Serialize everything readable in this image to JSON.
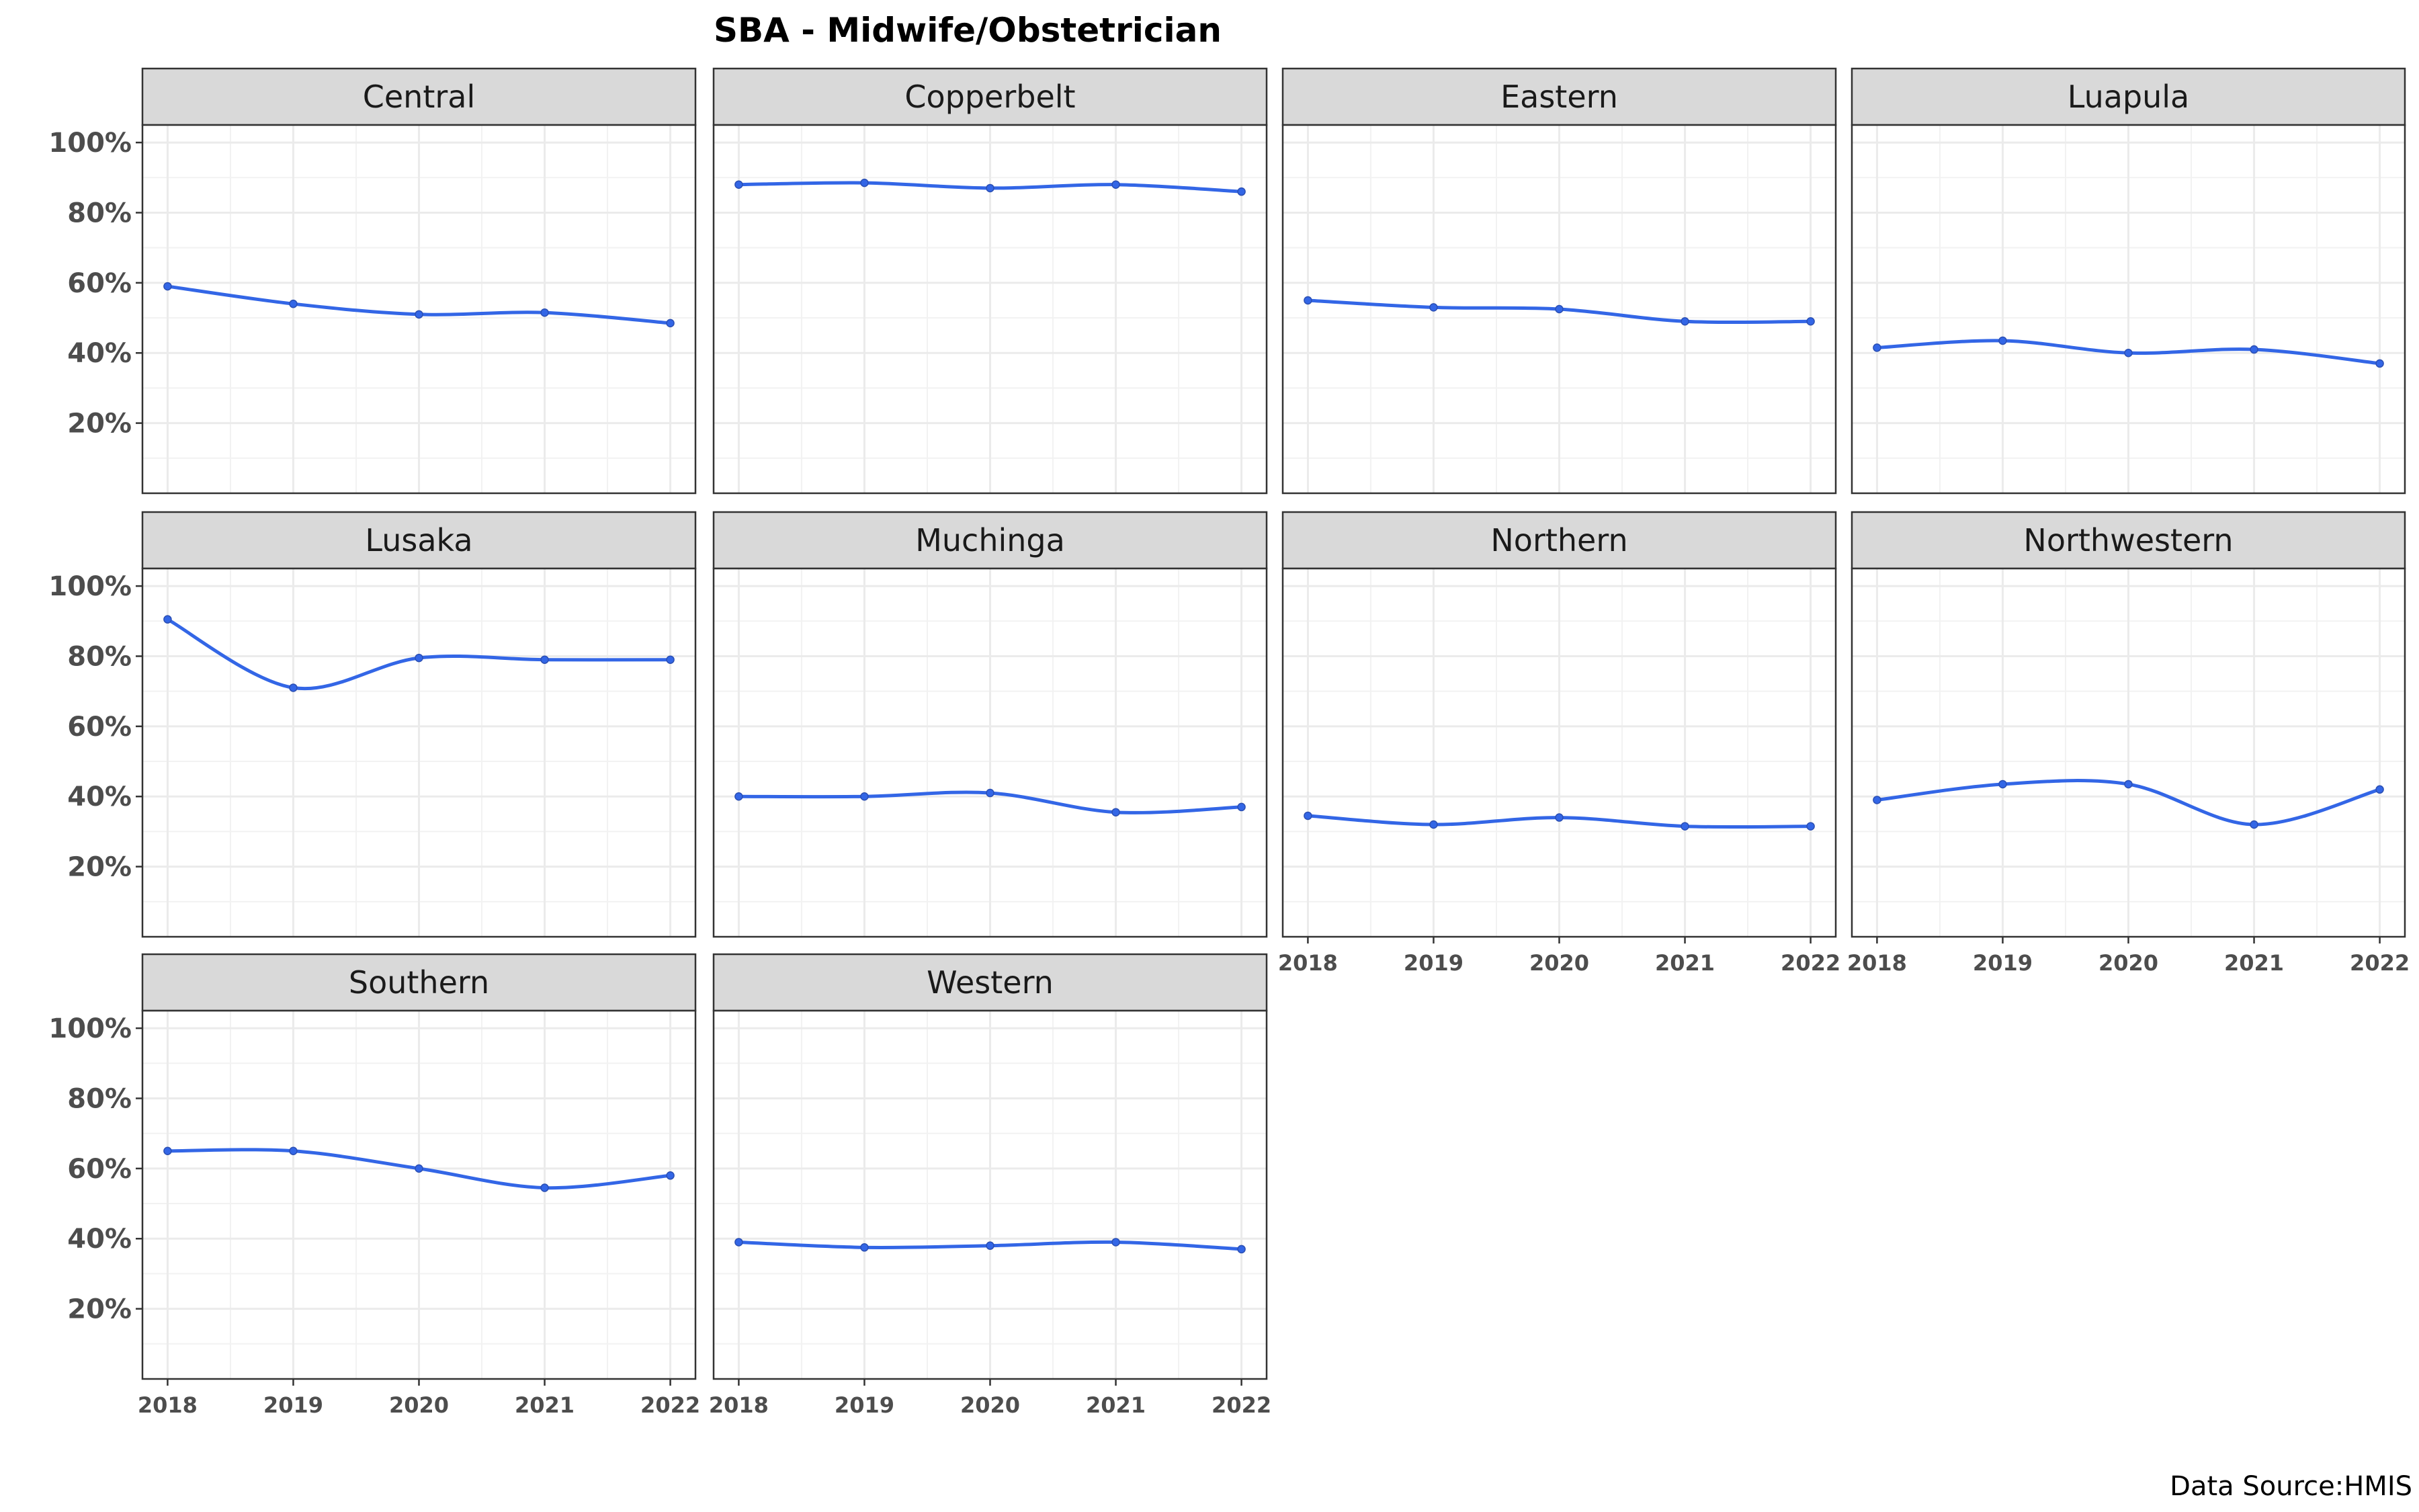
{
  "chart_data": {
    "type": "line",
    "title": "SBA - Midwife/Obstetrician",
    "caption": "Data Source:HMIS",
    "x": [
      2018,
      2019,
      2020,
      2021,
      2022
    ],
    "x_tick_labels": [
      "2018",
      "2019",
      "2020",
      "2021",
      "2022"
    ],
    "ylim": [
      0,
      105
    ],
    "y_ticks": [
      20,
      40,
      60,
      80,
      100
    ],
    "y_tick_labels": [
      "20%",
      "40%",
      "60%",
      "80%",
      "100%"
    ],
    "line_color": "#3366e6",
    "grid": true,
    "panels": [
      {
        "name": "Central",
        "values": [
          59,
          54,
          51,
          51.5,
          48.5
        ]
      },
      {
        "name": "Copperbelt",
        "values": [
          88,
          88.5,
          87,
          88,
          86
        ]
      },
      {
        "name": "Eastern",
        "values": [
          55,
          53,
          52.5,
          49,
          49
        ]
      },
      {
        "name": "Luapula",
        "values": [
          41.5,
          43.5,
          40,
          41,
          37
        ]
      },
      {
        "name": "Lusaka",
        "values": [
          90.5,
          71,
          79.5,
          79,
          79
        ]
      },
      {
        "name": "Muchinga",
        "values": [
          40,
          40,
          41,
          35.5,
          37
        ]
      },
      {
        "name": "Northern",
        "values": [
          34.5,
          32,
          34,
          31.5,
          31.5
        ]
      },
      {
        "name": "Northwestern",
        "values": [
          39,
          43.5,
          43.5,
          32,
          42
        ]
      },
      {
        "name": "Southern",
        "values": [
          65,
          65,
          60,
          54.5,
          58
        ]
      },
      {
        "name": "Western",
        "values": [
          39,
          37.5,
          38,
          39,
          37
        ]
      }
    ]
  }
}
